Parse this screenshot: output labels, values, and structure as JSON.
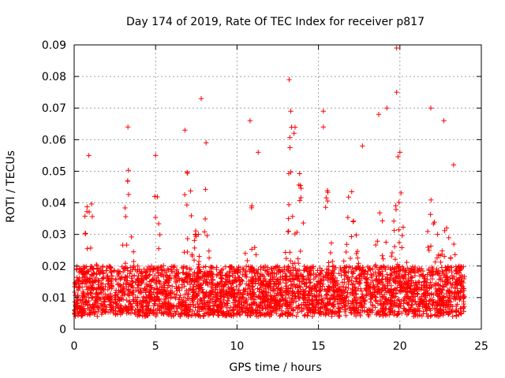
{
  "chart_data": {
    "type": "scatter",
    "title": "Day 174 of 2019, Rate Of TEC Index for receiver p817",
    "xlabel": "GPS time / hours",
    "ylabel": "ROTI / TECUs",
    "xlim": [
      0,
      25
    ],
    "ylim": [
      0,
      0.09
    ],
    "xticks": [
      "0",
      "5",
      "10",
      "15",
      "20",
      "25"
    ],
    "yticks": [
      "0",
      "0.01",
      "0.02",
      "0.03",
      "0.04",
      "0.05",
      "0.06",
      "0.07",
      "0.08",
      "0.09"
    ],
    "grid": true,
    "marker": "plus",
    "color": "#ff0000",
    "series_summary": {
      "x_range": [
        0,
        24
      ],
      "typical_y": [
        0.005,
        0.02
      ],
      "max_point": {
        "x": 19.8,
        "y": 0.089
      }
    },
    "notable_points": [
      {
        "x": 0.9,
        "y": 0.055
      },
      {
        "x": 3.3,
        "y": 0.064
      },
      {
        "x": 5.0,
        "y": 0.055
      },
      {
        "x": 6.8,
        "y": 0.063
      },
      {
        "x": 7.8,
        "y": 0.073
      },
      {
        "x": 8.1,
        "y": 0.059
      },
      {
        "x": 10.8,
        "y": 0.066
      },
      {
        "x": 11.3,
        "y": 0.056
      },
      {
        "x": 13.2,
        "y": 0.079
      },
      {
        "x": 13.3,
        "y": 0.069
      },
      {
        "x": 13.5,
        "y": 0.062
      },
      {
        "x": 15.3,
        "y": 0.069
      },
      {
        "x": 15.3,
        "y": 0.064
      },
      {
        "x": 17.7,
        "y": 0.058
      },
      {
        "x": 18.7,
        "y": 0.068
      },
      {
        "x": 19.2,
        "y": 0.07
      },
      {
        "x": 19.8,
        "y": 0.075
      },
      {
        "x": 19.8,
        "y": 0.089
      },
      {
        "x": 20.0,
        "y": 0.056
      },
      {
        "x": 21.9,
        "y": 0.07
      },
      {
        "x": 22.7,
        "y": 0.066
      },
      {
        "x": 23.3,
        "y": 0.052
      }
    ]
  }
}
